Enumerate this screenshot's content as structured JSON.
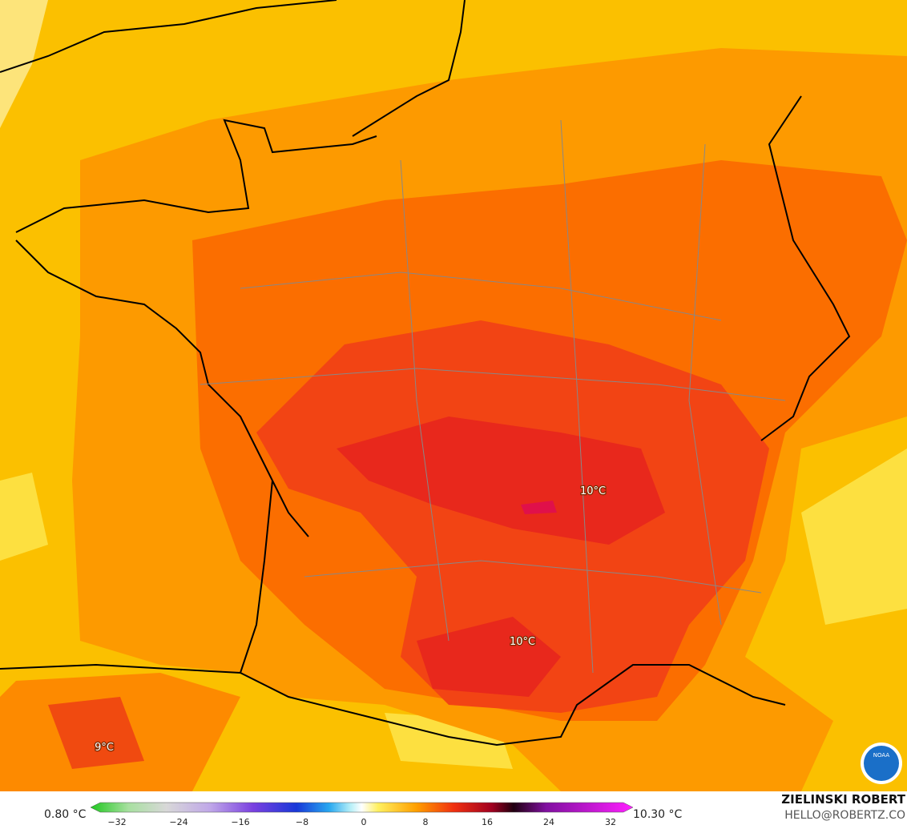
{
  "map": {
    "labels": [
      "10°C",
      "10°C",
      "9°C"
    ],
    "logo": "NOAA"
  },
  "colorbar": {
    "min_label": "0.80 °C",
    "max_label": "10.30 °C",
    "ticks": [
      "−32",
      "−24",
      "−16",
      "−8",
      "0",
      "8",
      "16",
      "24",
      "32"
    ]
  },
  "credit": {
    "author": "ZIELINSKI ROBERT",
    "email": "HELLO@ROBERTZ.CO"
  }
}
